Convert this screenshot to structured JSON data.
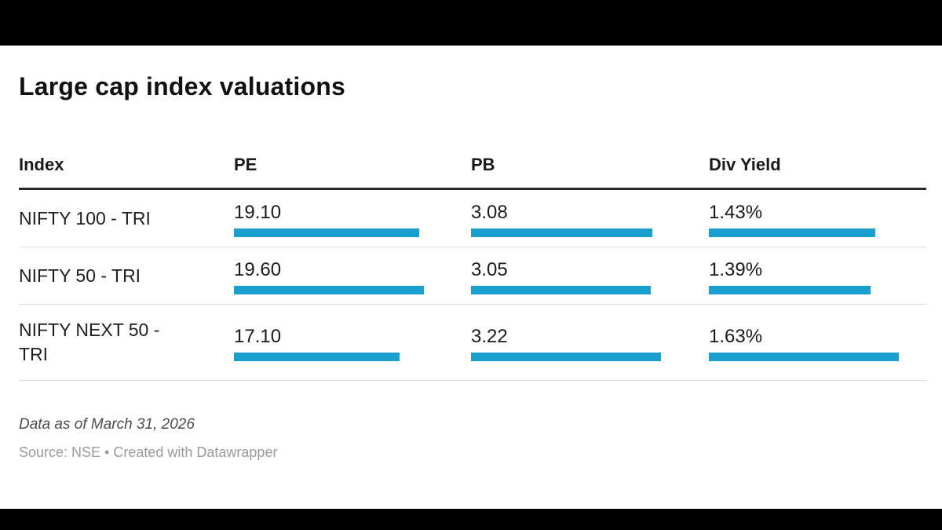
{
  "title": "Large cap index valuations",
  "columns": [
    "Index",
    "PE",
    "PB",
    "Div Yield"
  ],
  "rows": [
    {
      "label": "NIFTY 100 - TRI",
      "pe": "19.10",
      "pb": "3.08",
      "div": "1.43%"
    },
    {
      "label": "NIFTY 50 - TRI",
      "pe": "19.60",
      "pb": "3.05",
      "div": "1.39%"
    },
    {
      "label": "NIFTY NEXT 50 - TRI",
      "pe": "17.10",
      "pb": "3.22",
      "div": "1.63%"
    }
  ],
  "chart_data": {
    "type": "table",
    "title": "Large cap index valuations",
    "categories": [
      "NIFTY 100 - TRI",
      "NIFTY 50 - TRI",
      "NIFTY NEXT 50 - TRI"
    ],
    "series": [
      {
        "name": "PE",
        "values": [
          19.1,
          19.6,
          17.1
        ]
      },
      {
        "name": "PB",
        "values": [
          3.08,
          3.05,
          3.22
        ]
      },
      {
        "name": "Div Yield",
        "values": [
          1.43,
          1.39,
          1.63
        ]
      }
    ],
    "bars": "scaled to each column's maximum value",
    "legend": "none",
    "grid": "off"
  },
  "footer": {
    "note": "Data as of March 31, 2026",
    "source": "Source: NSE • Created with Datawrapper"
  },
  "colors": {
    "bar": "#1aa0cf",
    "header_rule": "#2b2b2b",
    "row_border": "#dcdcdc",
    "title_text": "#111111",
    "note_text": "#4c4c4c",
    "source_text": "#9a9a9a",
    "letterbox": "#000000"
  }
}
